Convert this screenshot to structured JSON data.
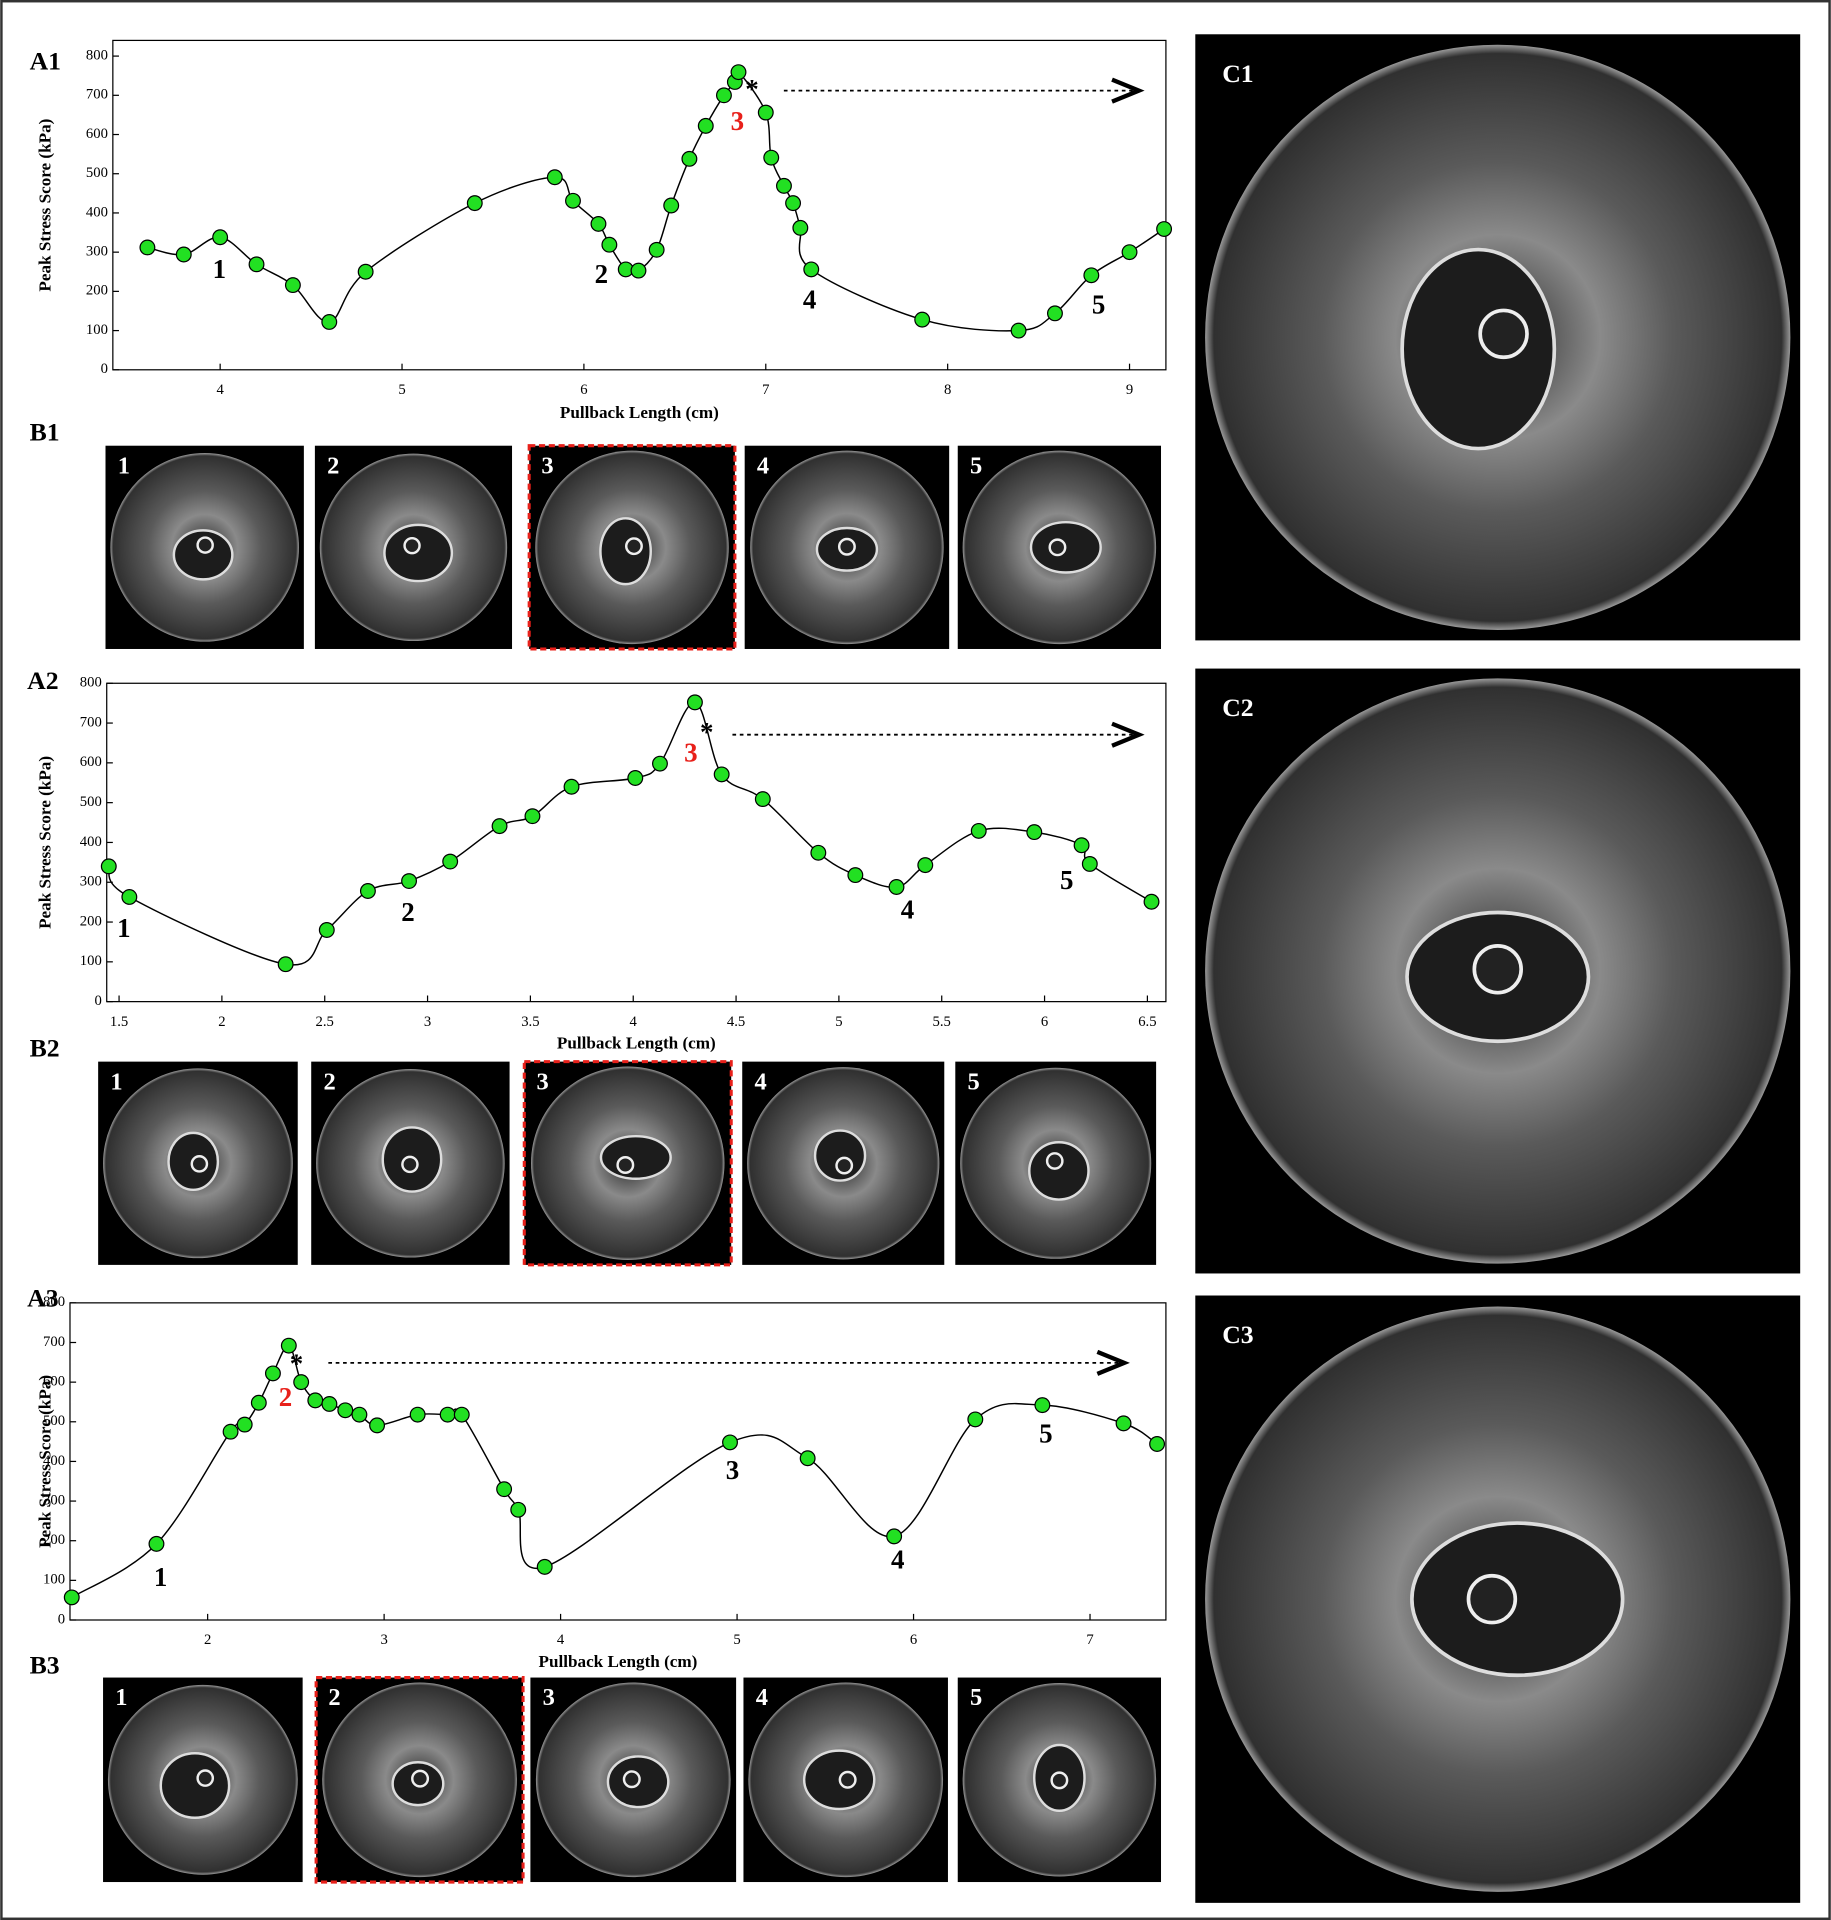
{
  "chart_data": [
    {
      "type": "line",
      "x_label": "Pullback Length (cm)",
      "y_label": "Peak Stress Score (kPa)",
      "x": [
        3.6,
        3.8,
        4.0,
        4.2,
        4.4,
        4.6,
        4.8,
        5.4,
        5.84,
        5.94,
        6.08,
        6.14,
        6.23,
        6.3,
        6.4,
        6.48,
        6.58,
        6.67,
        6.77,
        6.83,
        6.85,
        7.0,
        7.03,
        7.1,
        7.15,
        7.19,
        7.25,
        7.86,
        8.39,
        8.59,
        8.79,
        9.0,
        9.19
      ],
      "series": [
        {
          "color": "#22e022",
          "values": [
            312,
            294,
            338,
            269,
            216,
            122,
            250,
            425,
            491,
            431,
            372,
            319,
            256,
            253,
            306,
            419,
            538,
            622,
            700,
            734,
            759,
            656,
            541,
            469,
            425,
            362,
            256,
            128,
            100,
            144,
            241,
            300,
            359
          ]
        }
      ],
      "xlim": [
        3.41,
        9.2
      ],
      "ylim": [
        0,
        840
      ],
      "xticks": [
        4,
        5,
        6,
        7,
        8,
        9
      ],
      "yticks": [
        0,
        100,
        200,
        300,
        400,
        500,
        600,
        700,
        800
      ],
      "annotations": [
        {
          "text": "1",
          "color": "#000000"
        },
        {
          "text": "2",
          "color": "#000000"
        },
        {
          "text": "3",
          "color": "#e8201a"
        },
        {
          "text": "*",
          "color": "#000000"
        },
        {
          "text": "4",
          "color": "#000000"
        },
        {
          "text": "5",
          "color": "#000000"
        }
      ]
    },
    {
      "type": "line",
      "x_label": "Pullback Length (cm)",
      "y_label": "Peak Stress Score (kPa)",
      "x": [
        1.45,
        1.55,
        2.31,
        2.51,
        2.71,
        2.91,
        3.11,
        3.35,
        3.51,
        3.7,
        4.01,
        4.13,
        4.3,
        4.43,
        4.63,
        4.9,
        5.08,
        5.28,
        5.42,
        5.68,
        5.95,
        6.18,
        6.22,
        6.52
      ],
      "series": [
        {
          "color": "#22e022",
          "values": [
            340,
            263,
            94,
            180,
            278,
            303,
            352,
            441,
            466,
            540,
            562,
            598,
            752,
            571,
            509,
            374,
            318,
            288,
            343,
            429,
            426,
            393,
            346,
            251
          ]
        }
      ],
      "xlim": [
        1.44,
        6.59
      ],
      "ylim": [
        0,
        800
      ],
      "xticks": [
        1.5,
        2,
        2.5,
        3,
        3.5,
        4,
        4.5,
        5,
        5.5,
        6,
        6.5
      ],
      "yticks": [
        0,
        100,
        200,
        300,
        400,
        500,
        600,
        700,
        800
      ],
      "annotations": [
        {
          "text": "1",
          "color": "#000000"
        },
        {
          "text": "2",
          "color": "#000000"
        },
        {
          "text": "3",
          "color": "#e8201a"
        },
        {
          "text": "*",
          "color": "#000000"
        },
        {
          "text": "4",
          "color": "#000000"
        },
        {
          "text": "5",
          "color": "#000000"
        }
      ]
    },
    {
      "type": "line",
      "x_label": "Pullback Length (cm)",
      "y_label": "Peak Stress Score (kPa)",
      "x": [
        1.23,
        1.71,
        2.13,
        2.21,
        2.29,
        2.37,
        2.46,
        2.53,
        2.61,
        2.69,
        2.78,
        2.86,
        2.96,
        3.19,
        3.36,
        3.44,
        3.68,
        3.76,
        3.91,
        4.96,
        5.4,
        5.89,
        6.35,
        6.73,
        7.19,
        7.38
      ],
      "series": [
        {
          "color": "#22e022",
          "values": [
            57,
            192,
            475,
            493,
            548,
            622,
            692,
            600,
            554,
            545,
            529,
            518,
            491,
            518,
            518,
            518,
            330,
            278,
            134,
            448,
            408,
            211,
            506,
            542,
            496,
            444
          ]
        }
      ],
      "xlim": [
        1.22,
        7.43
      ],
      "ylim": [
        0,
        800
      ],
      "xticks": [
        2,
        3,
        4,
        5,
        6,
        7
      ],
      "yticks": [
        0,
        100,
        200,
        300,
        400,
        500,
        600,
        700,
        800
      ],
      "annotations": [
        {
          "text": "1",
          "color": "#000000"
        },
        {
          "text": "2",
          "color": "#e8201a"
        },
        {
          "text": "*",
          "color": "#000000"
        },
        {
          "text": "3",
          "color": "#000000"
        },
        {
          "text": "4",
          "color": "#000000"
        },
        {
          "text": "5",
          "color": "#000000"
        }
      ]
    }
  ],
  "panels": {
    "a_labels": [
      "A1",
      "A2",
      "A3"
    ],
    "b_labels": [
      "B1",
      "B2",
      "B3"
    ],
    "c_labels": [
      "C1",
      "C2",
      "C3"
    ],
    "b_images": [
      [
        "1",
        "2",
        "3",
        "4",
        "5"
      ],
      [
        "1",
        "2",
        "3",
        "4",
        "5"
      ],
      [
        "1",
        "2",
        "3",
        "4",
        "5"
      ]
    ]
  }
}
